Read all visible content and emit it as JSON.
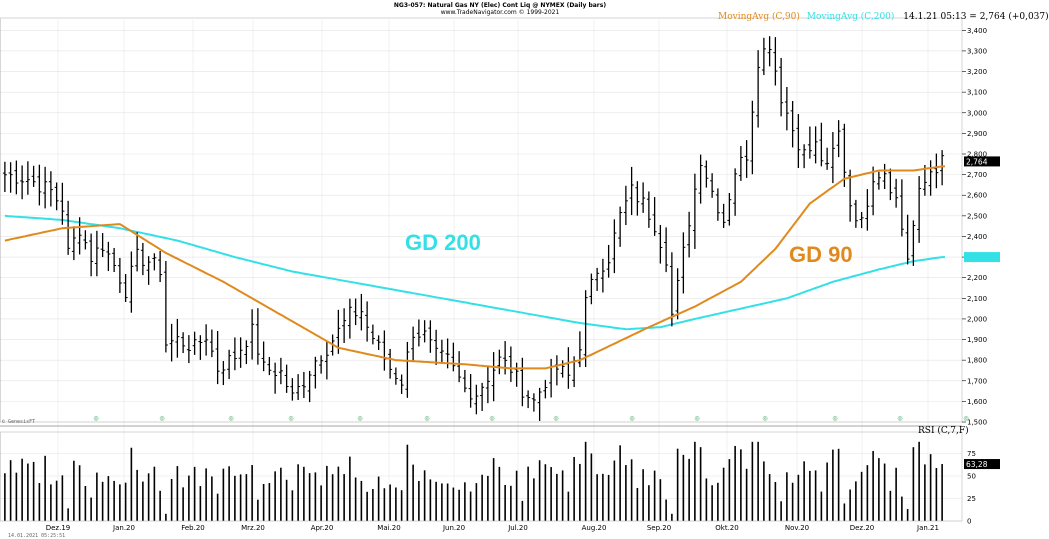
{
  "header": {
    "title": "NG3-057: Natural Gas NY (Elec) Cont Liq @ NYMEX (Daily bars)",
    "copyright": "www.TradeNavigator.com © 1999-2021"
  },
  "legend": {
    "ma90_label": "MovingAvg (C,90)",
    "ma200_label": "MovingAvg (C,200)",
    "quote": "14.1.21 05:13 = 2,764 (+0,037)"
  },
  "annotations": {
    "gd200": "GD 200",
    "gd90": "GD 90",
    "genesis": "© GenesisFT",
    "timestamp": "14.01.2021 05:25:51"
  },
  "badges": {
    "last_price": "2,764",
    "ma200_value": "2,300",
    "rsi_value": "63,28"
  },
  "rsi_label": "RSI (C,7,F)",
  "colors": {
    "ma90": "#e08a1e",
    "ma200": "#33e0e6",
    "bars": "#000000",
    "grid": "#d9d9d9"
  },
  "chart_data": [
    {
      "type": "ohlc",
      "title": "NG3-057: Natural Gas NY (Elec) Cont Liq @ NYMEX (Daily bars)",
      "ylim": [
        1.5,
        3.45
      ],
      "y_ticks": [
        "1,500",
        "1,600",
        "1,700",
        "1,800",
        "1,900",
        "2,000",
        "2,100",
        "2,200",
        "2,300",
        "2,400",
        "2,500",
        "2,600",
        "2,700",
        "2,800",
        "2,900",
        "3,000",
        "3,100",
        "3,200",
        "3,300",
        "3,400"
      ],
      "x_ticks": [
        "Dez.19",
        "Jan.20",
        "Feb.20",
        "Mrz.20",
        "Apr.20",
        "Mai.20",
        "Jun.20",
        "Jul.20",
        "Aug.20",
        "Sep.20",
        "Okt.20",
        "Nov.20",
        "Dez.20",
        "Jan.21"
      ],
      "grid": true,
      "close_path": [
        [
          0,
          2.7
        ],
        [
          4,
          2.68
        ],
        [
          8,
          2.62
        ],
        [
          10,
          2.54
        ],
        [
          11,
          2.32
        ],
        [
          13,
          2.44
        ],
        [
          15,
          2.3
        ],
        [
          17,
          2.36
        ],
        [
          19,
          2.26
        ],
        [
          21,
          2.14
        ],
        [
          23,
          2.3
        ],
        [
          25,
          2.28
        ],
        [
          27,
          2.24
        ],
        [
          28,
          1.88
        ],
        [
          30,
          1.9
        ],
        [
          33,
          1.86
        ],
        [
          35,
          1.92
        ],
        [
          37,
          1.76
        ],
        [
          40,
          1.82
        ],
        [
          43,
          1.94
        ],
        [
          45,
          1.76
        ],
        [
          48,
          1.74
        ],
        [
          50,
          1.62
        ],
        [
          52,
          1.7
        ],
        [
          54,
          1.8
        ],
        [
          56,
          1.86
        ],
        [
          58,
          1.94
        ],
        [
          60,
          2.02
        ],
        [
          62,
          2.04
        ],
        [
          63,
          1.96
        ],
        [
          65,
          1.86
        ],
        [
          67,
          1.76
        ],
        [
          69,
          1.7
        ],
        [
          71,
          1.94
        ],
        [
          73,
          1.92
        ],
        [
          75,
          1.82
        ],
        [
          77,
          1.8
        ],
        [
          80,
          1.66
        ],
        [
          82,
          1.64
        ],
        [
          84,
          1.72
        ],
        [
          86,
          1.8
        ],
        [
          88,
          1.76
        ],
        [
          90,
          1.66
        ],
        [
          92,
          1.6
        ],
        [
          94,
          1.7
        ],
        [
          96,
          1.76
        ],
        [
          98,
          1.72
        ],
        [
          100,
          1.88
        ],
        [
          101,
          2.08
        ],
        [
          103,
          2.24
        ],
        [
          105,
          2.3
        ],
        [
          107,
          2.5
        ],
        [
          109,
          2.62
        ],
        [
          111,
          2.56
        ],
        [
          113,
          2.46
        ],
        [
          115,
          2.3
        ],
        [
          116,
          2.02
        ],
        [
          117,
          2.16
        ],
        [
          119,
          2.48
        ],
        [
          121,
          2.78
        ],
        [
          123,
          2.62
        ],
        [
          125,
          2.48
        ],
        [
          127,
          2.72
        ],
        [
          129,
          2.8
        ],
        [
          131,
          3.26
        ],
        [
          133,
          3.34
        ],
        [
          135,
          3.08
        ],
        [
          137,
          2.92
        ],
        [
          139,
          2.8
        ],
        [
          141,
          2.84
        ],
        [
          143,
          2.72
        ],
        [
          145,
          2.9
        ],
        [
          147,
          2.56
        ],
        [
          149,
          2.46
        ],
        [
          151,
          2.7
        ],
        [
          153,
          2.72
        ],
        [
          155,
          2.58
        ],
        [
          157,
          2.3
        ],
        [
          159,
          2.6
        ],
        [
          161,
          2.72
        ],
        [
          163,
          2.76
        ]
      ],
      "series": [
        {
          "name": "MovingAvg (C,90)",
          "color": "#e08a1e",
          "values": [
            [
              0,
              2.38
            ],
            [
              10,
              2.44
            ],
            [
              20,
              2.46
            ],
            [
              28,
              2.32
            ],
            [
              38,
              2.18
            ],
            [
              48,
              2.02
            ],
            [
              58,
              1.86
            ],
            [
              68,
              1.8
            ],
            [
              80,
              1.78
            ],
            [
              88,
              1.76
            ],
            [
              94,
              1.76
            ],
            [
              100,
              1.8
            ],
            [
              106,
              1.88
            ],
            [
              112,
              1.96
            ],
            [
              120,
              2.06
            ],
            [
              128,
              2.18
            ],
            [
              134,
              2.34
            ],
            [
              140,
              2.56
            ],
            [
              146,
              2.68
            ],
            [
              152,
              2.72
            ],
            [
              158,
              2.72
            ],
            [
              163,
              2.74
            ]
          ]
        },
        {
          "name": "MovingAvg (C,200)",
          "color": "#33e0e6",
          "values": [
            [
              0,
              2.5
            ],
            [
              10,
              2.48
            ],
            [
              20,
              2.44
            ],
            [
              30,
              2.38
            ],
            [
              40,
              2.3
            ],
            [
              50,
              2.23
            ],
            [
              60,
              2.18
            ],
            [
              70,
              2.13
            ],
            [
              80,
              2.08
            ],
            [
              90,
              2.03
            ],
            [
              100,
              1.98
            ],
            [
              108,
              1.95
            ],
            [
              114,
              1.96
            ],
            [
              120,
              2.0
            ],
            [
              128,
              2.05
            ],
            [
              136,
              2.1
            ],
            [
              144,
              2.18
            ],
            [
              152,
              2.24
            ],
            [
              158,
              2.28
            ],
            [
              163,
              2.3
            ]
          ]
        }
      ]
    },
    {
      "type": "bar",
      "title": "RSI (C,7,F)",
      "ylim": [
        0,
        90
      ],
      "y_ticks": [
        "0",
        "25",
        "50",
        "75"
      ],
      "values_by_index": "derived_from_close_path",
      "last_value": 63.28
    }
  ]
}
